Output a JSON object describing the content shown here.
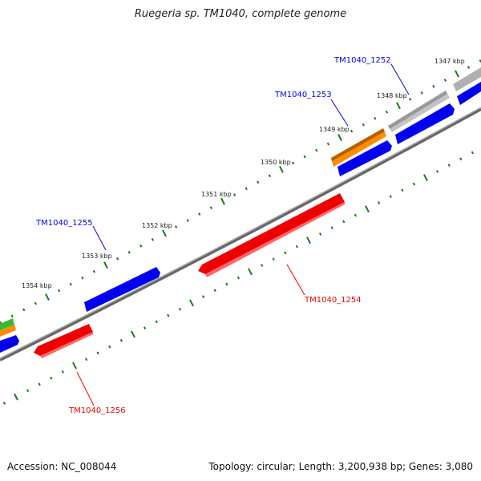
{
  "title": "Ruegeria sp. TM1040, complete genome",
  "accession": "Accession: NC_008044",
  "topology": "Topology: circular; Length: 3,200,938 bp; Genes: 3,080",
  "ticks": [
    "1347 kbp",
    "1348 kbp",
    "1349 kbp",
    "1350 kbp",
    "1351 kbp",
    "1352 kbp",
    "1353 kbp",
    "1354 kbp"
  ],
  "genes": {
    "g1252": "TM1040_1252",
    "g1253": "TM1040_1253",
    "g1254": "TM1040_1254",
    "g1255": "TM1040_1255",
    "g1256": "TM1040_1256"
  },
  "colors": {
    "forward": "#0000ee",
    "reverse": "#ee0000",
    "orange": "#ff8c00",
    "gray": "#b8b8b8",
    "green": "#33bb33",
    "tick": "#1a7a1a",
    "backbone": "#888888"
  }
}
